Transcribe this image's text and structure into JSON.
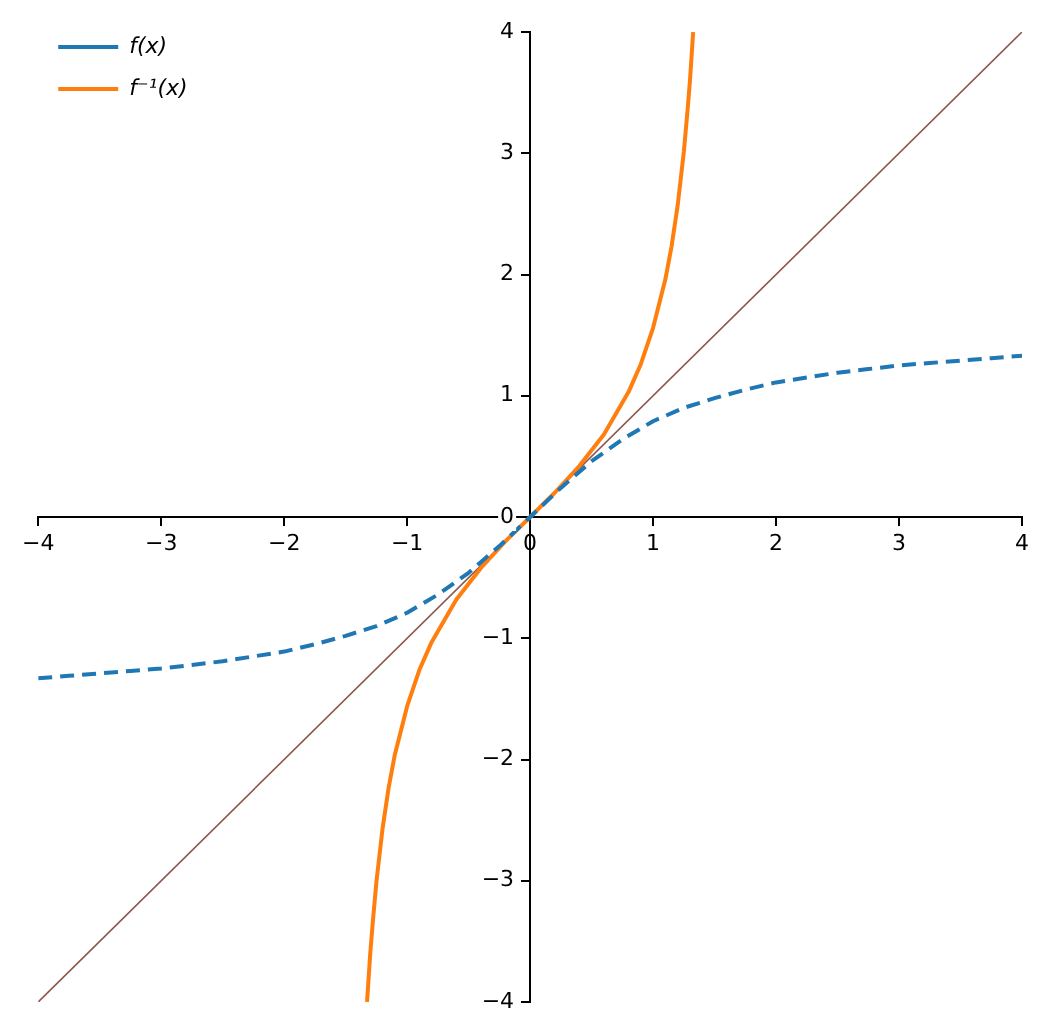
{
  "chart_data": {
    "type": "line",
    "xlim": [
      -4,
      4
    ],
    "ylim": [
      -4,
      4
    ],
    "xticks": [
      -4,
      -3,
      -2,
      -1,
      0,
      1,
      2,
      3,
      4
    ],
    "yticks": [
      -4,
      -3,
      -2,
      -1,
      0,
      1,
      2,
      3,
      4
    ],
    "legend": "top left",
    "series": [
      {
        "name": "f(x)",
        "color": "#1f77b4",
        "line_style": "dashed",
        "x": [
          -4,
          -3.75,
          -3.5,
          -3.25,
          -3,
          -2.75,
          -2.5,
          -2.25,
          -2,
          -1.75,
          -1.5,
          -1.25,
          -1,
          -0.75,
          -0.5,
          -0.25,
          0,
          0.25,
          0.5,
          0.75,
          1,
          1.25,
          1.5,
          1.75,
          2,
          2.25,
          2.5,
          2.75,
          3,
          3.25,
          3.5,
          3.75,
          4
        ],
        "values": [
          -1.33,
          -1.31,
          -1.29,
          -1.27,
          -1.25,
          -1.22,
          -1.19,
          -1.15,
          -1.11,
          -1.05,
          -0.98,
          -0.9,
          -0.79,
          -0.64,
          -0.46,
          -0.24,
          0,
          0.24,
          0.46,
          0.64,
          0.79,
          0.9,
          0.98,
          1.05,
          1.11,
          1.15,
          1.19,
          1.22,
          1.25,
          1.27,
          1.29,
          1.31,
          1.33
        ]
      },
      {
        "name": "f⁻¹(x)",
        "color": "#ff7f0e",
        "line_style": "solid",
        "x": [
          -1.326,
          -1.3,
          -1.28,
          -1.25,
          -1.2,
          -1.15,
          -1.1,
          -1,
          -0.9,
          -0.8,
          -0.6,
          -0.4,
          -0.2,
          0,
          0.2,
          0.4,
          0.6,
          0.8,
          0.9,
          1,
          1.1,
          1.15,
          1.2,
          1.25,
          1.28,
          1.3,
          1.326
        ],
        "values": [
          -4,
          -3.6,
          -3.35,
          -3.01,
          -2.57,
          -2.23,
          -1.96,
          -1.56,
          -1.26,
          -1.03,
          -0.68,
          -0.42,
          -0.2,
          0,
          0.2,
          0.42,
          0.68,
          1.03,
          1.26,
          1.56,
          1.96,
          2.23,
          2.57,
          3.01,
          3.35,
          3.6,
          4
        ]
      },
      {
        "color": "#8c564b",
        "line_style": "solid",
        "x": [
          -4,
          4
        ],
        "values": [
          -4,
          4
        ]
      }
    ]
  }
}
